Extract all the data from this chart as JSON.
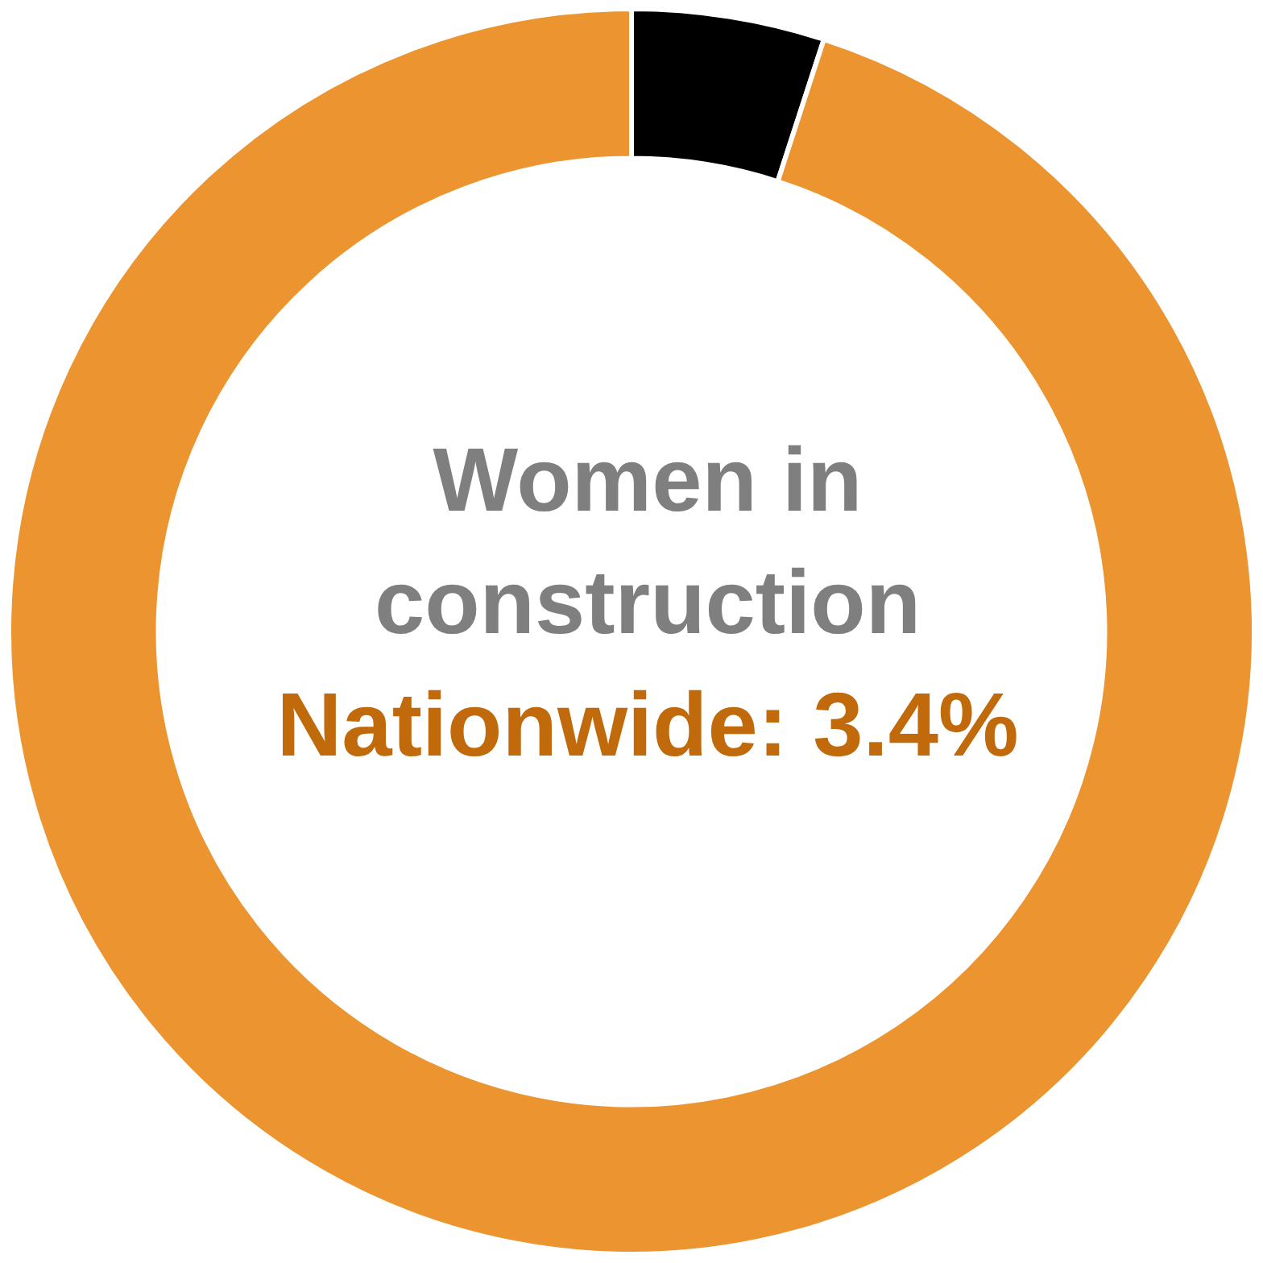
{
  "chart_data": {
    "type": "donut",
    "title": "Women in construction",
    "annotations": [
      "Nationwide: 3.4%"
    ],
    "categories": [
      null,
      null
    ],
    "values": [
      5,
      95
    ],
    "colors": [
      "#000000",
      "#ec942f"
    ],
    "legend": false
  }
}
